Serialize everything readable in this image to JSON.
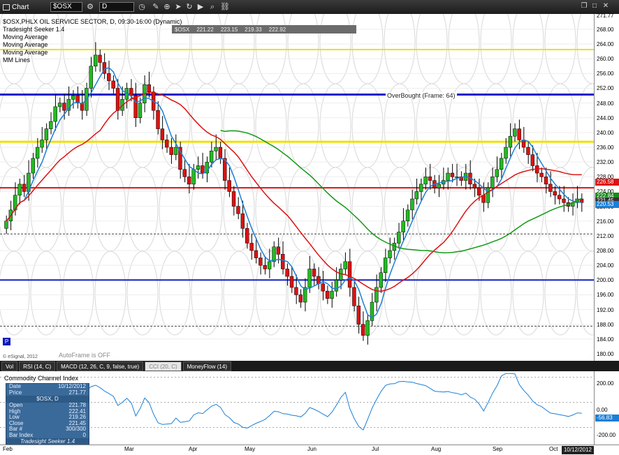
{
  "toolbar": {
    "title": "Chart",
    "symbol": "$OSX",
    "interval": "D"
  },
  "legend": {
    "line1": "$OSX,PHLX OIL SERVICE SECTOR, D, 09:30-16:00 (Dynamic)",
    "line2": "Tradesight Seeker 1.4",
    "line3": "Moving Average",
    "line4": "Moving Average",
    "line5": "Moving Average",
    "line6": "MM Lines"
  },
  "ohlc": {
    "symbol": "$OSX",
    "open": "221.22",
    "high": "223.15",
    "low": "219.33",
    "close": "222.92"
  },
  "overbought_label": "OverBought (Frame: 64)",
  "autoframe_label": "AutoFrame is OFF",
  "copyright": "© eSignal, 2012",
  "p_marker": "P",
  "price_axis": {
    "ticks": [
      "271.77",
      "268.00",
      "264.00",
      "260.00",
      "256.00",
      "252.00",
      "248.00",
      "244.00",
      "240.00",
      "236.00",
      "232.00",
      "228.00",
      "224.00",
      "220.00",
      "216.00",
      "212.00",
      "208.00",
      "204.00",
      "200.00",
      "196.00",
      "192.00",
      "188.00",
      "184.00",
      "180.00"
    ],
    "tags": [
      {
        "text": "226.58",
        "color": "#d11"
      },
      {
        "text": "222.84",
        "color": "#1a8a1a"
      },
      {
        "text": "221.45",
        "color": "#333"
      },
      {
        "text": "220.53",
        "color": "#1b7fd6"
      }
    ]
  },
  "tabs": [
    {
      "label": "Vol",
      "active": false
    },
    {
      "label": "RSI (14, C)",
      "active": false
    },
    {
      "label": "MACD (12, 26, C, 9, false, true)",
      "active": false
    },
    {
      "label": "CCI (20, C)",
      "active": true
    },
    {
      "label": "MoneyFlow (14)",
      "active": false
    }
  ],
  "cci": {
    "title": "Commodity Channel Index",
    "ticks": [
      "200.00",
      "0.00",
      "-200.00"
    ],
    "current": "-56.83"
  },
  "data_window": {
    "date_label": "Date",
    "date": "10/12/2012",
    "price_label": "Price",
    "price": "271.77",
    "header": "$OSX, D",
    "rows": [
      {
        "k": "Open",
        "v": "221.78"
      },
      {
        "k": "High",
        "v": "222.41"
      },
      {
        "k": "Low",
        "v": "219.26"
      },
      {
        "k": "Close",
        "v": "221.45"
      },
      {
        "k": "Bar #",
        "v": "300/300"
      },
      {
        "k": "Bar Index",
        "v": "0"
      }
    ],
    "footer": "Tradesight Seeker 1.4"
  },
  "months": [
    "Feb",
    "Mar",
    "Apr",
    "May",
    "Jun",
    "Jul",
    "Aug",
    "Sep",
    "Oct"
  ],
  "date_tag": "10/12/2012",
  "colors": {
    "ma_fast": "#1b7fd6",
    "ma_slow": "#dd1111",
    "ma_long": "#129912",
    "up": "#22bb22",
    "down": "#dd1111"
  },
  "chart_data": {
    "type": "candlestick",
    "ylim": [
      180,
      271.77
    ],
    "close": [
      216,
      219,
      223,
      226,
      224,
      229,
      233,
      236,
      238,
      241,
      243,
      247,
      248,
      246,
      249,
      250,
      248,
      246,
      252,
      258,
      261,
      259,
      256,
      254,
      252,
      246,
      249,
      252,
      250,
      244,
      248,
      253,
      251,
      246,
      241,
      238,
      236,
      234,
      236,
      230,
      228,
      226,
      230,
      231,
      229,
      232,
      235,
      236,
      233,
      227,
      224,
      220,
      218,
      214,
      210,
      208,
      206,
      204,
      203,
      205,
      209,
      207,
      203,
      201,
      198,
      196,
      194,
      198,
      203,
      201,
      199,
      197,
      195,
      197,
      200,
      203,
      205,
      198,
      193,
      188,
      185,
      189,
      194,
      198,
      202,
      206,
      208,
      210,
      213,
      216,
      219,
      222,
      224,
      226,
      228,
      227,
      225,
      226,
      227,
      229,
      228,
      228,
      227,
      229,
      226,
      225,
      223,
      221,
      225,
      228,
      230,
      233,
      236,
      239,
      241,
      238,
      236,
      234,
      231,
      229,
      228,
      226,
      224,
      223,
      222,
      221,
      220,
      221,
      222,
      221
    ]
  }
}
